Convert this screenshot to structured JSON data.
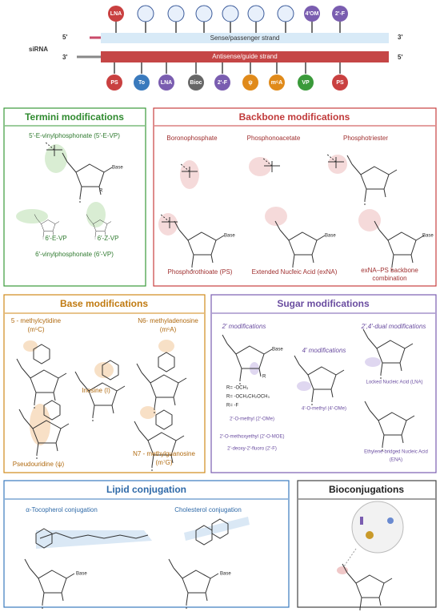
{
  "sirna": {
    "label": "siRNA",
    "sense_strand": "Sense/passenger strand",
    "antisense_strand": "Antisense/guide strand",
    "five_prime": "5'",
    "three_prime": "3'",
    "top_mods": [
      "LNA",
      "4'OM",
      "2'-F"
    ],
    "bottom_mods": [
      "PS",
      "To",
      "LNA",
      "Bioc",
      "2'-F",
      "ψ",
      "m⁶A",
      "VP",
      "PS"
    ]
  },
  "nucleoside": {
    "base": "Base",
    "r": "R",
    "o": "O"
  },
  "termini": {
    "title": "Termini modifications",
    "items": [
      "5′-E-vinylphosphonate (5′-E-VP)",
      "6′-E-VP",
      "6′-Z-VP",
      "6′-vinylphosphonate (6′-VP)"
    ]
  },
  "backbone": {
    "title": "Backbone modifications",
    "items": [
      "Boronophosphate",
      "Phosphonoacetate",
      "Phosphotriester",
      "Phosphorothioate (PS)",
      "Extended Nucleic Acid (exNA)",
      "exNA–PS backbone",
      "combination"
    ]
  },
  "base": {
    "title": "Base modifications",
    "items": [
      "5 - methylcytidine",
      "(m⁵C)",
      "N6- methyladenosine",
      "(m⁶A)",
      "Inosine (I)",
      "Pseudouridine (ψ)",
      "N7 - methylguanosine",
      "(m⁷G)"
    ]
  },
  "sugar": {
    "title": "Sugar modifications",
    "items": [
      "2′ modifications",
      "4′ modifications",
      "2′,4′-dual modifications",
      "R= -OCH₃",
      "R= -OCH₂CH₂OCH₃",
      "R= -F",
      "4′-O-methyl (4′-OMe)",
      "Locked Nucleic Acid (LNA)",
      "2′-O-methyl (2′-OMe)",
      "2′-O-methoxyethyl (2′-O-MOE)",
      "2′-deoxy-2′-fluoro (2′-F)",
      "Ethylene-bridged Nucleic Acid",
      "(ENA)"
    ]
  },
  "lipid": {
    "title": "Lipid conjugation",
    "items": [
      "α-Tocopherol conjugation",
      "Cholesterol conjugation"
    ]
  },
  "bio": {
    "title": "Bioconjugations"
  }
}
